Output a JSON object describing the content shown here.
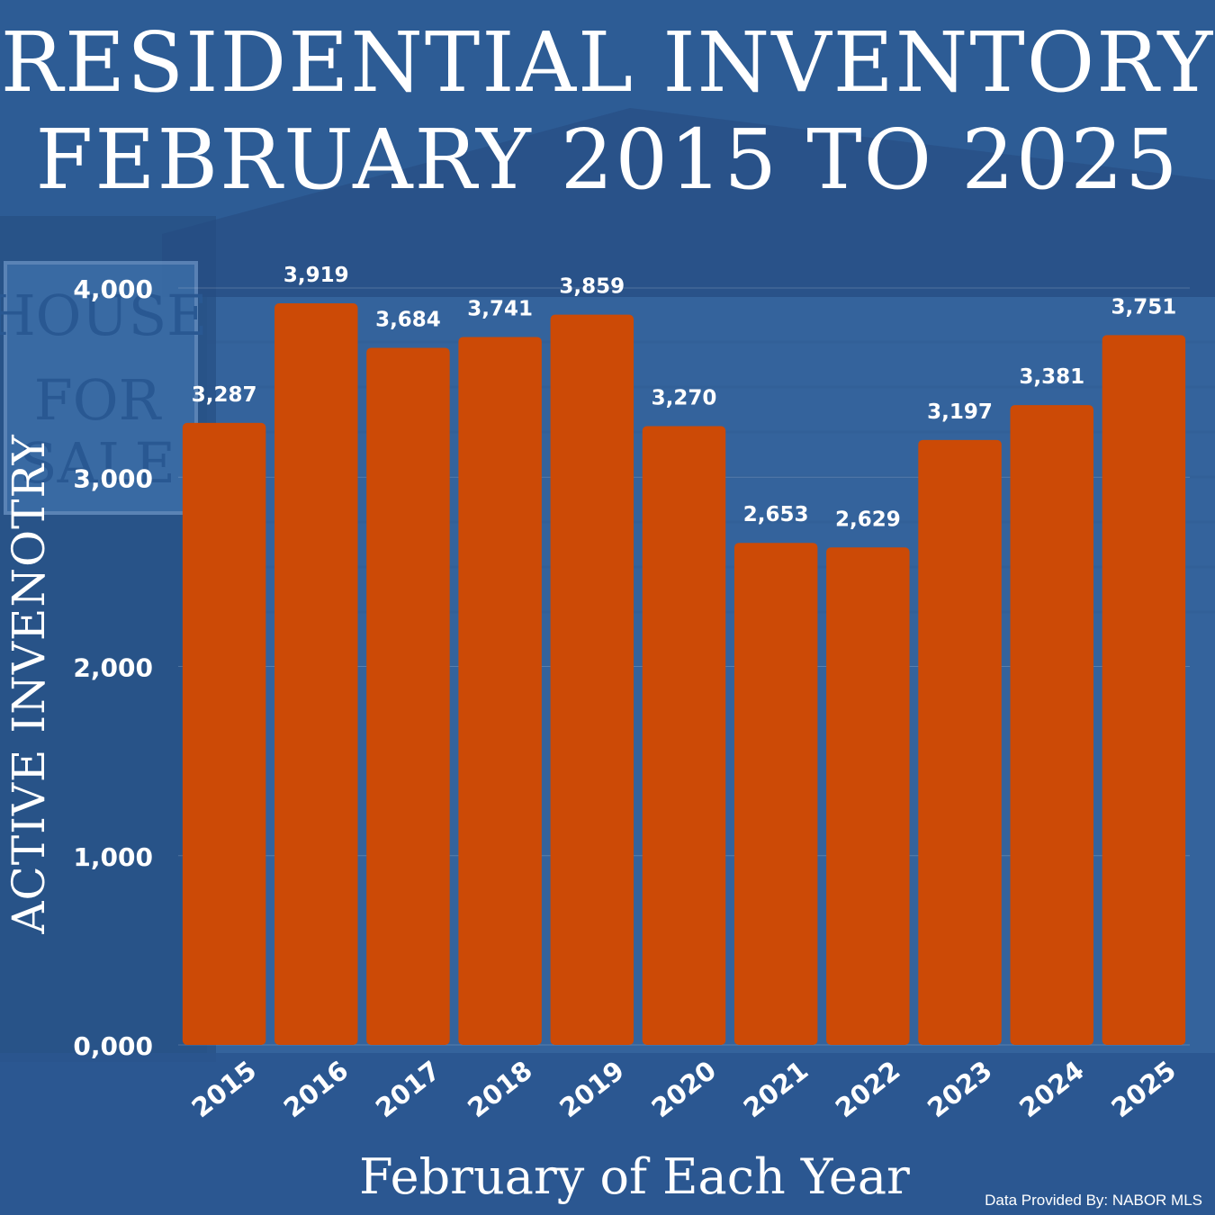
{
  "title_line1": "RESIDENTIAL INVENTORY",
  "title_line2": "FEBRUARY 2015 TO 2025",
  "credit": "Data Provided By: NABOR MLS",
  "background_sign": {
    "line1": "HOUSE",
    "line2": "FOR",
    "line3": "SALE"
  },
  "colors": {
    "background": "#2b5a93",
    "bar": "#cc4a06",
    "text": "#ffffff"
  },
  "chart_data": {
    "type": "bar",
    "title": "RESIDENTIAL INVENTORY FEBRUARY 2015 TO 2025",
    "xlabel": "February of Each Year",
    "ylabel": "ACTIVE INVENOTRY",
    "categories": [
      "2015",
      "2016",
      "2017",
      "2018",
      "2019",
      "2020",
      "2021",
      "2022",
      "2023",
      "2024",
      "2025"
    ],
    "values": [
      3287,
      3919,
      3684,
      3741,
      3859,
      3270,
      2653,
      2629,
      3197,
      3381,
      3751
    ],
    "value_labels": [
      "3,287",
      "3,919",
      "3,684",
      "3,741",
      "3,859",
      "3,270",
      "2,653",
      "2,629",
      "3,197",
      "3,381",
      "3,751"
    ],
    "yticks": [
      0,
      1000,
      2000,
      3000,
      4000
    ],
    "ytick_labels": [
      "0,000",
      "1,000",
      "2,000",
      "3,000",
      "4,000"
    ],
    "ylim": [
      0,
      4000
    ],
    "grid": true,
    "legend": "none"
  }
}
